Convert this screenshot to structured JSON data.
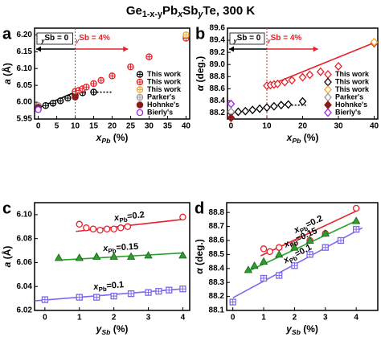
{
  "title": [
    "Ge",
    "1-x-y",
    "Pb",
    "x",
    "Sb",
    "y",
    "Te, 300 K"
  ],
  "chart_data": [
    {
      "type": "scatter",
      "panel": "a",
      "xlabel": [
        "x",
        "Pb",
        " (%)"
      ],
      "ylabel": [
        "a",
        " (Å)"
      ],
      "xlim": [
        -1,
        41
      ],
      "xticks": [
        0,
        5,
        10,
        15,
        20,
        25,
        30,
        35,
        40
      ],
      "ylim": [
        5.95,
        6.22
      ],
      "yticks": [
        5.95,
        {
          "value": 6.0,
          "label": "6.00"
        },
        6.05,
        {
          "value": 6.1,
          "label": "6.10"
        },
        6.15,
        {
          "value": 6.2,
          "label": "6.20"
        }
      ],
      "legend": "lower right",
      "divider": 10,
      "regions": [
        {
          "text": [
            "y",
            "Sb",
            " = 0"
          ],
          "color": "#000000"
        },
        {
          "text": [
            "y",
            "Sb",
            " = 4%"
          ],
          "color": "#e8202a"
        }
      ],
      "series": [
        {
          "name": "This work",
          "color": "#000000",
          "marker": "circle-plus",
          "x": [
            0,
            2,
            4,
            6,
            8,
            10,
            12,
            15
          ],
          "values": [
            5.983,
            5.99,
            5.997,
            6.004,
            6.012,
            6.02,
            6.028,
            6.03
          ]
        },
        {
          "name": "This work",
          "color": "#e8202a",
          "marker": "circle-plus",
          "x": [
            10,
            11,
            12,
            13,
            15,
            17,
            20,
            25,
            30,
            40
          ],
          "values": [
            6.032,
            6.035,
            6.04,
            6.045,
            6.055,
            6.065,
            6.078,
            6.105,
            6.135,
            6.19
          ]
        },
        {
          "name": "This work",
          "color": "#f5a623",
          "marker": "circle-plus",
          "x": [
            40
          ],
          "values": [
            6.2
          ]
        },
        {
          "name": "Parker's",
          "color": "#999999",
          "marker": "circle-plus",
          "x": [
            0
          ],
          "values": [
            5.99
          ]
        },
        {
          "name": "Hohnke's",
          "color": "#8b1a1a",
          "marker": "filled-circle",
          "x": [
            0,
            10
          ],
          "values": [
            5.985,
            6.015
          ]
        },
        {
          "name": "Bierly's",
          "color": "#a020f0",
          "marker": "circle",
          "x": [
            0
          ],
          "values": [
            5.978
          ]
        }
      ],
      "fits": [
        {
          "color": "#000000",
          "style": "solid",
          "x": [
            0,
            10
          ],
          "y": [
            5.983,
            6.03
          ]
        },
        {
          "color": "#000000",
          "style": "dotted",
          "x": [
            15,
            20
          ],
          "y": [
            6.03,
            6.03
          ]
        }
      ]
    },
    {
      "type": "scatter",
      "panel": "b",
      "xlabel": [
        "x",
        "Pb",
        " (%)"
      ],
      "ylabel": [
        "α",
        " (deg.)"
      ],
      "xlim": [
        -1,
        41
      ],
      "xticks": [
        0,
        10,
        20,
        30,
        40
      ],
      "ylim": [
        88.1,
        89.6
      ],
      "yticks": [
        88.2,
        88.4,
        88.6,
        88.8,
        {
          "value": 89.0,
          "label": "89.0"
        },
        89.2,
        89.4,
        89.6
      ],
      "legend": "lower right",
      "divider": 10,
      "regions": [
        {
          "text": [
            "y",
            "Sb",
            " = 0"
          ],
          "color": "#000000"
        },
        {
          "text": [
            "y",
            "Sb",
            " = 4%"
          ],
          "color": "#e8202a"
        }
      ],
      "series": [
        {
          "name": "This work",
          "color": "#e8202a",
          "marker": "diamond",
          "x": [
            10,
            11,
            12,
            13,
            15,
            17,
            20,
            22,
            25,
            30,
            40
          ],
          "values": [
            88.65,
            88.66,
            88.67,
            88.68,
            88.71,
            88.74,
            88.79,
            88.83,
            88.88,
            88.97,
            89.35
          ]
        },
        {
          "name": "This work",
          "color": "#000000",
          "marker": "diamond",
          "x": [
            0,
            2,
            4,
            6,
            8,
            10,
            12,
            14,
            16,
            20
          ],
          "values": [
            88.21,
            88.22,
            88.23,
            88.25,
            88.27,
            88.29,
            88.31,
            88.33,
            88.34,
            88.39
          ]
        },
        {
          "name": "This work",
          "color": "#f5a623",
          "marker": "diamond",
          "x": [
            40
          ],
          "values": [
            89.37
          ]
        },
        {
          "name": "Parker's",
          "color": "#999999",
          "marker": "diamond",
          "x": [
            0
          ],
          "values": [
            88.22
          ]
        },
        {
          "name": "Hohnke's",
          "color": "#8b1a1a",
          "marker": "filled-diamond",
          "x": [
            0
          ],
          "values": [
            88.12
          ]
        },
        {
          "name": "Bierly's",
          "color": "#a020f0",
          "marker": "diamond",
          "x": [
            0
          ],
          "values": [
            88.35
          ]
        }
      ],
      "fits": [
        {
          "color": "#e8202a",
          "style": "solid",
          "x": [
            10,
            40
          ],
          "y": [
            88.64,
            89.36
          ]
        },
        {
          "color": "#000000",
          "style": "dotted",
          "x": [
            16,
            21
          ],
          "y": [
            88.33,
            88.33
          ]
        }
      ]
    },
    {
      "type": "scatter",
      "panel": "c",
      "xlabel": [
        "y",
        "Sb",
        " (%)"
      ],
      "ylabel": [
        "a",
        " (Å)"
      ],
      "xlim": [
        -0.3,
        4.2
      ],
      "xticks": [
        0,
        1,
        2,
        3,
        4
      ],
      "ylim": [
        6.02,
        6.11
      ],
      "yticks": [
        6.02,
        6.04,
        6.06,
        6.08,
        {
          "value": 6.1,
          "label": "6.10"
        }
      ],
      "series": [
        {
          "label": [
            "x",
            "Pb",
            "=0.2"
          ],
          "color": "#e8202a",
          "marker": "circle",
          "x": [
            1,
            1.2,
            1.4,
            1.6,
            1.8,
            2,
            2.2,
            2.4,
            4
          ],
          "values": [
            6.092,
            6.089,
            6.088,
            6.087,
            6.088,
            6.088,
            6.089,
            6.09,
            6.098
          ],
          "fit": {
            "x": [
              0.9,
              4
            ],
            "y": [
              6.086,
              6.096
            ]
          }
        },
        {
          "label": [
            "x",
            "Pb",
            "=0.15"
          ],
          "color": "#2ca02c",
          "marker": "triangle",
          "x": [
            0.4,
            1,
            1.5,
            2,
            2.5,
            3,
            4
          ],
          "values": [
            6.064,
            6.064,
            6.065,
            6.065,
            6.065,
            6.066,
            6.066
          ],
          "fit": {
            "x": [
              0.4,
              4
            ],
            "y": [
              6.062,
              6.068
            ]
          }
        },
        {
          "label": [
            "x",
            "Pb",
            "=0.1"
          ],
          "color": "#7b68ee",
          "marker": "square-plus",
          "x": [
            0,
            1,
            1.5,
            2,
            2.5,
            3,
            3.3,
            3.6,
            4
          ],
          "values": [
            6.029,
            6.031,
            6.031,
            6.032,
            6.034,
            6.035,
            6.036,
            6.037,
            6.038
          ],
          "fit": {
            "x": [
              -0.3,
              4
            ],
            "y": [
              6.028,
              6.038
            ]
          }
        }
      ]
    },
    {
      "type": "scatter",
      "panel": "d",
      "xlabel": [
        "y",
        "Sb",
        " (%)"
      ],
      "ylabel": [
        "α",
        " (deg.)"
      ],
      "xlim": [
        -0.2,
        4.7
      ],
      "xticks": [
        0,
        1,
        2,
        3,
        4
      ],
      "ylim": [
        88.1,
        88.87
      ],
      "yticks": [
        88.1,
        88.2,
        88.3,
        88.4,
        88.5,
        88.6,
        88.7,
        88.8
      ],
      "series": [
        {
          "label": [
            "x",
            "Pb",
            "=0.2"
          ],
          "color": "#e8202a",
          "marker": "circle",
          "x": [
            1,
            1.2,
            1.5,
            2,
            2.5,
            3,
            4
          ],
          "values": [
            88.54,
            88.52,
            88.55,
            88.58,
            88.6,
            88.65,
            88.83
          ],
          "fit": {
            "x": [
              0.9,
              4
            ],
            "y": [
              88.49,
              88.81
            ]
          }
        },
        {
          "label": [
            "x",
            "Pb",
            "=0.15"
          ],
          "color": "#2ca02c",
          "marker": "triangle",
          "x": [
            0.5,
            0.7,
            1,
            1.5,
            2,
            2.5,
            3,
            4
          ],
          "values": [
            88.39,
            88.42,
            88.45,
            88.5,
            88.55,
            88.6,
            88.65,
            88.74
          ],
          "fit": {
            "x": [
              0.4,
              4
            ],
            "y": [
              88.37,
              88.74
            ]
          }
        },
        {
          "label": [
            "x",
            "Pb",
            "=0.1"
          ],
          "color": "#7b68ee",
          "marker": "square-plus",
          "x": [
            0,
            1,
            1.5,
            2,
            2.5,
            3,
            3.5,
            4
          ],
          "values": [
            88.16,
            88.33,
            88.35,
            88.42,
            88.5,
            88.55,
            88.6,
            88.68
          ],
          "fit": {
            "x": [
              0,
              4.2
            ],
            "y": [
              88.19,
              88.69
            ]
          }
        }
      ]
    }
  ]
}
